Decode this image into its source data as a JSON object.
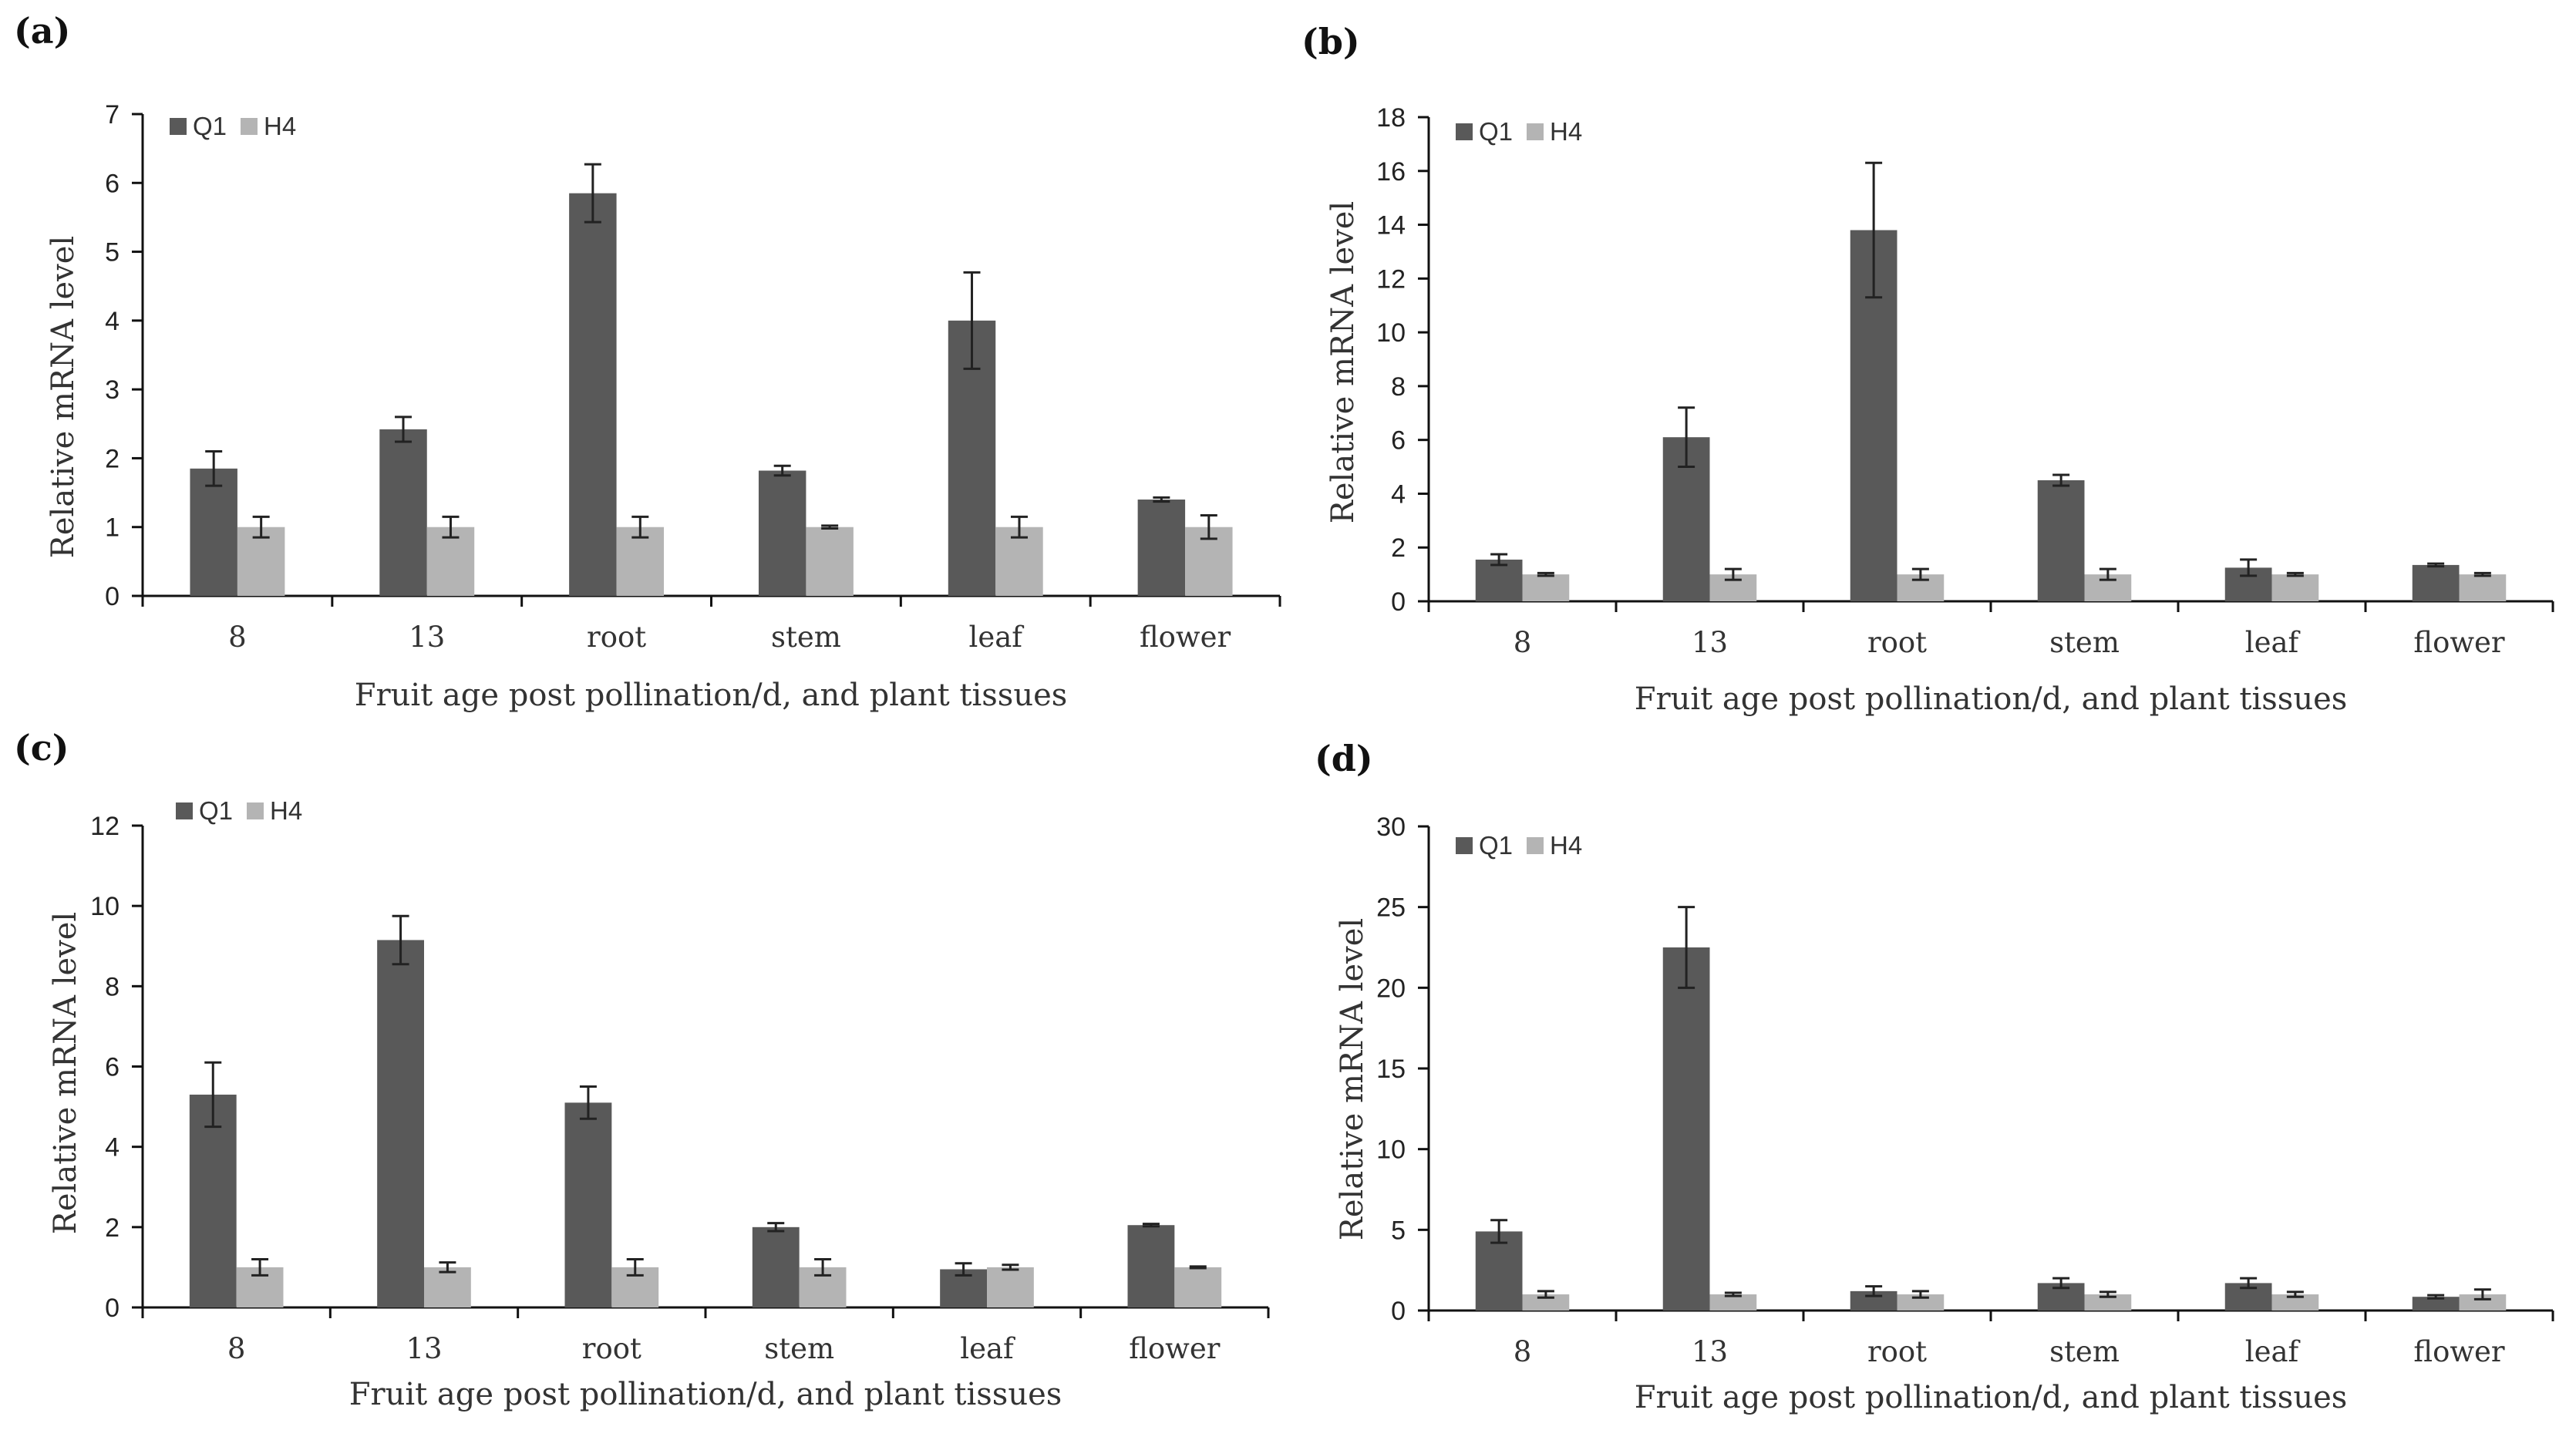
{
  "colors": {
    "Q1": "#595959",
    "H4": "#b4b4b4",
    "axis": "#111111",
    "errorbar": "#222222"
  },
  "chart_data": [
    {
      "panel": "(a)",
      "type": "bar",
      "categories": [
        "8",
        "13",
        "root",
        "stem",
        "leaf",
        "flower"
      ],
      "series": [
        {
          "name": "Q1",
          "values": [
            1.85,
            2.42,
            5.85,
            1.82,
            4.0,
            1.4
          ],
          "errors": [
            0.25,
            0.18,
            0.42,
            0.07,
            0.7,
            0.03
          ]
        },
        {
          "name": "H4",
          "values": [
            1.0,
            1.0,
            1.0,
            1.0,
            1.0,
            1.0
          ],
          "errors": [
            0.15,
            0.15,
            0.15,
            0.02,
            0.15,
            0.17
          ]
        }
      ],
      "xlabel": "Fruit age post pollination/d, and plant tissues",
      "ylabel": "Relative mRNA level",
      "ylim": [
        0,
        7
      ],
      "yticks": [
        0,
        1,
        2,
        3,
        4,
        5,
        6,
        7
      ],
      "legend": "top-left"
    },
    {
      "panel": "(b)",
      "type": "bar",
      "categories": [
        "8",
        "13",
        "root",
        "stem",
        "leaf",
        "flower"
      ],
      "series": [
        {
          "name": "Q1",
          "values": [
            1.55,
            6.1,
            13.8,
            4.5,
            1.25,
            1.35
          ],
          "errors": [
            0.2,
            1.1,
            2.5,
            0.2,
            0.3,
            0.05
          ]
        },
        {
          "name": "H4",
          "values": [
            1.0,
            1.0,
            1.0,
            1.0,
            1.0,
            1.0
          ],
          "errors": [
            0.05,
            0.2,
            0.2,
            0.2,
            0.05,
            0.05
          ]
        }
      ],
      "xlabel": "Fruit age post pollination/d, and plant tissues",
      "ylabel": "Relative mRNA level",
      "ylim": [
        0,
        18
      ],
      "yticks": [
        0,
        2,
        4,
        6,
        8,
        10,
        12,
        14,
        16,
        18
      ],
      "legend": "top-left"
    },
    {
      "panel": "(c)",
      "type": "bar",
      "categories": [
        "8",
        "13",
        "root",
        "stem",
        "leaf",
        "flower"
      ],
      "series": [
        {
          "name": "Q1",
          "values": [
            5.3,
            9.15,
            5.1,
            2.0,
            0.95,
            2.05
          ],
          "errors": [
            0.8,
            0.6,
            0.4,
            0.1,
            0.15,
            0.03
          ]
        },
        {
          "name": "H4",
          "values": [
            1.0,
            1.0,
            1.0,
            1.0,
            1.0,
            1.0
          ],
          "errors": [
            0.2,
            0.12,
            0.2,
            0.2,
            0.06,
            0.02
          ]
        }
      ],
      "xlabel": "Fruit age post pollination/d, and plant tissues",
      "ylabel": "Relative mRNA level",
      "ylim": [
        0,
        12
      ],
      "yticks": [
        0,
        2,
        4,
        6,
        8,
        10,
        12
      ],
      "legend": "top-left"
    },
    {
      "panel": "(d)",
      "type": "bar",
      "categories": [
        "8",
        "13",
        "root",
        "stem",
        "leaf",
        "flower"
      ],
      "series": [
        {
          "name": "Q1",
          "values": [
            4.9,
            22.5,
            1.2,
            1.7,
            1.7,
            0.85
          ],
          "errors": [
            0.7,
            2.5,
            0.3,
            0.3,
            0.3,
            0.1
          ]
        },
        {
          "name": "H4",
          "values": [
            1.0,
            1.0,
            1.0,
            1.0,
            1.0,
            1.0
          ],
          "errors": [
            0.2,
            0.1,
            0.2,
            0.15,
            0.15,
            0.3
          ]
        }
      ],
      "xlabel": "Fruit age post pollination/d, and plant tissues",
      "ylabel": "Relative mRNA level",
      "ylim": [
        0,
        30
      ],
      "yticks": [
        0,
        5,
        10,
        15,
        20,
        25,
        30
      ],
      "legend": "top-left"
    }
  ]
}
